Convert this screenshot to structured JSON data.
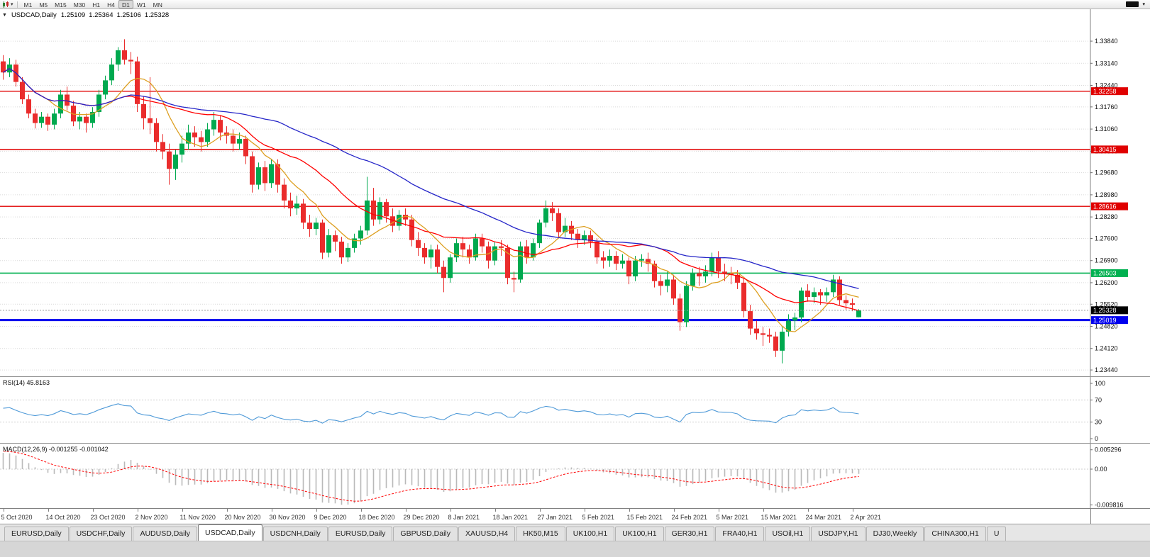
{
  "toolbar": {
    "timeframes": [
      "M1",
      "M5",
      "M15",
      "M30",
      "H1",
      "H4",
      "D1",
      "W1",
      "MN"
    ],
    "active_timeframe": "D1",
    "left_icon": "candlestick-chart-icon",
    "right_icon": "black-box-icon"
  },
  "chart_header": {
    "symbol_period": "USDCAD,Daily",
    "open": "1.25109",
    "high": "1.25364",
    "low": "1.25106",
    "close": "1.25328"
  },
  "chart_data": {
    "type": "candlestick",
    "symbol": "USDCAD",
    "period": "Daily",
    "grid": true,
    "up_color": "#00a94f",
    "down_color": "#ea2c2c",
    "price_view_range": [
      1.2324,
      1.3485
    ],
    "price_axis_labels": [
      "1.33840",
      "1.33140",
      "1.32440",
      "1.31760",
      "1.31060",
      "1.30360",
      "1.29680",
      "1.28980",
      "1.28280",
      "1.27600",
      "1.26900",
      "1.26200",
      "1.25520",
      "1.24820",
      "1.24120",
      "1.23440"
    ],
    "x_label_every": 7,
    "x_labels": [
      "5 Oct 2020",
      "14 Oct 2020",
      "23 Oct 2020",
      "2 Nov 2020",
      "11 Nov 2020",
      "20 Nov 2020",
      "30 Nov 2020",
      "9 Dec 2020",
      "18 Dec 2020",
      "29 Dec 2020",
      "8 Jan 2021",
      "18 Jan 2021",
      "27 Jan 2021",
      "5 Feb 2021",
      "15 Feb 2021",
      "24 Feb 2021",
      "5 Mar 2021",
      "15 Mar 2021",
      "24 Mar 2021",
      "2 Apr 2021"
    ],
    "candles": [
      [
        1.332,
        1.334,
        1.3262,
        1.3285
      ],
      [
        1.3285,
        1.333,
        1.327,
        1.331
      ],
      [
        1.331,
        1.3325,
        1.324,
        1.3255
      ],
      [
        1.3255,
        1.327,
        1.3185,
        1.32
      ],
      [
        1.32,
        1.3215,
        1.314,
        1.3155
      ],
      [
        1.3155,
        1.317,
        1.3108,
        1.3125
      ],
      [
        1.3125,
        1.316,
        1.311,
        1.3145
      ],
      [
        1.3145,
        1.3155,
        1.31,
        1.312
      ],
      [
        1.312,
        1.317,
        1.3105,
        1.3155
      ],
      [
        1.3155,
        1.323,
        1.314,
        1.3215
      ],
      [
        1.3215,
        1.324,
        1.3165,
        1.318
      ],
      [
        1.318,
        1.3195,
        1.3115,
        1.313
      ],
      [
        1.313,
        1.316,
        1.3105,
        1.3145
      ],
      [
        1.3145,
        1.3155,
        1.3095,
        1.3125
      ],
      [
        1.3125,
        1.3175,
        1.311,
        1.316
      ],
      [
        1.316,
        1.323,
        1.3145,
        1.3215
      ],
      [
        1.3215,
        1.3275,
        1.32,
        1.326
      ],
      [
        1.326,
        1.333,
        1.3245,
        1.331
      ],
      [
        1.331,
        1.3365,
        1.329,
        1.3355
      ],
      [
        1.3355,
        1.339,
        1.331,
        1.3325
      ],
      [
        1.3325,
        1.335,
        1.328,
        1.332
      ],
      [
        1.332,
        1.3335,
        1.316,
        1.3185
      ],
      [
        1.3185,
        1.321,
        1.3105,
        1.314
      ],
      [
        1.314,
        1.327,
        1.309,
        1.3125
      ],
      [
        1.3125,
        1.314,
        1.3035,
        1.3065
      ],
      [
        1.3065,
        1.309,
        1.301,
        1.3035
      ],
      [
        1.3035,
        1.306,
        1.293,
        1.298
      ],
      [
        1.298,
        1.304,
        1.2945,
        1.3025
      ],
      [
        1.3025,
        1.3085,
        1.3,
        1.306
      ],
      [
        1.306,
        1.312,
        1.304,
        1.3095
      ],
      [
        1.3095,
        1.3115,
        1.305,
        1.308
      ],
      [
        1.308,
        1.31,
        1.3035,
        1.3065
      ],
      [
        1.3065,
        1.3125,
        1.305,
        1.3105
      ],
      [
        1.3105,
        1.316,
        1.3085,
        1.3135
      ],
      [
        1.3135,
        1.315,
        1.307,
        1.3095
      ],
      [
        1.3095,
        1.3115,
        1.306,
        1.3085
      ],
      [
        1.3085,
        1.3105,
        1.3035,
        1.306
      ],
      [
        1.306,
        1.3095,
        1.304,
        1.3075
      ],
      [
        1.3075,
        1.3085,
        1.2995,
        1.302
      ],
      [
        1.302,
        1.3035,
        1.2905,
        1.293
      ],
      [
        1.293,
        1.3,
        1.2915,
        1.2985
      ],
      [
        1.2985,
        1.3005,
        1.291,
        1.2935
      ],
      [
        1.2935,
        1.301,
        1.292,
        1.2995
      ],
      [
        1.2995,
        1.301,
        1.2905,
        1.293
      ],
      [
        1.293,
        1.295,
        1.2855,
        1.288
      ],
      [
        1.288,
        1.2905,
        1.283,
        1.2855
      ],
      [
        1.2855,
        1.2895,
        1.2835,
        1.287
      ],
      [
        1.287,
        1.2885,
        1.279,
        1.281
      ],
      [
        1.281,
        1.2835,
        1.2765,
        1.279
      ],
      [
        1.279,
        1.2825,
        1.277,
        1.281
      ],
      [
        1.281,
        1.282,
        1.2695,
        1.2715
      ],
      [
        1.2715,
        1.279,
        1.27,
        1.277
      ],
      [
        1.277,
        1.2785,
        1.272,
        1.275
      ],
      [
        1.275,
        1.2765,
        1.268,
        1.27
      ],
      [
        1.27,
        1.2745,
        1.2685,
        1.273
      ],
      [
        1.273,
        1.2775,
        1.2715,
        1.276
      ],
      [
        1.276,
        1.28,
        1.274,
        1.2785
      ],
      [
        1.2785,
        1.2955,
        1.277,
        1.288
      ],
      [
        1.288,
        1.292,
        1.28,
        1.282
      ],
      [
        1.282,
        1.289,
        1.2805,
        1.2875
      ],
      [
        1.2875,
        1.2885,
        1.281,
        1.283
      ],
      [
        1.283,
        1.2855,
        1.278,
        1.28
      ],
      [
        1.28,
        1.285,
        1.2785,
        1.2835
      ],
      [
        1.2835,
        1.2855,
        1.28,
        1.282
      ],
      [
        1.282,
        1.2835,
        1.2735,
        1.2755
      ],
      [
        1.2755,
        1.278,
        1.2705,
        1.273
      ],
      [
        1.273,
        1.2745,
        1.268,
        1.27
      ],
      [
        1.27,
        1.274,
        1.2665,
        1.2725
      ],
      [
        1.2725,
        1.274,
        1.265,
        1.267
      ],
      [
        1.267,
        1.269,
        1.259,
        1.2635
      ],
      [
        1.2635,
        1.271,
        1.262,
        1.27
      ],
      [
        1.27,
        1.276,
        1.2685,
        1.2745
      ],
      [
        1.2745,
        1.2765,
        1.27,
        1.2725
      ],
      [
        1.2725,
        1.274,
        1.268,
        1.27
      ],
      [
        1.27,
        1.2775,
        1.269,
        1.276
      ],
      [
        1.276,
        1.2775,
        1.2715,
        1.2735
      ],
      [
        1.2735,
        1.275,
        1.2665,
        1.269
      ],
      [
        1.269,
        1.275,
        1.2675,
        1.2735
      ],
      [
        1.2735,
        1.2755,
        1.2705,
        1.273
      ],
      [
        1.273,
        1.274,
        1.2615,
        1.2635
      ],
      [
        1.2635,
        1.2655,
        1.259,
        1.263
      ],
      [
        1.263,
        1.275,
        1.262,
        1.2735
      ],
      [
        1.2735,
        1.2755,
        1.268,
        1.27
      ],
      [
        1.27,
        1.276,
        1.269,
        1.2745
      ],
      [
        1.2745,
        1.282,
        1.273,
        1.281
      ],
      [
        1.281,
        1.288,
        1.2795,
        1.2855
      ],
      [
        1.2855,
        1.2875,
        1.2815,
        1.284
      ],
      [
        1.284,
        1.2855,
        1.276,
        1.278
      ],
      [
        1.278,
        1.2825,
        1.2765,
        1.28
      ],
      [
        1.28,
        1.2815,
        1.2755,
        1.2775
      ],
      [
        1.2775,
        1.279,
        1.273,
        1.2755
      ],
      [
        1.2755,
        1.2785,
        1.274,
        1.277
      ],
      [
        1.277,
        1.2785,
        1.273,
        1.275
      ],
      [
        1.275,
        1.276,
        1.268,
        1.27
      ],
      [
        1.27,
        1.272,
        1.2665,
        1.269
      ],
      [
        1.269,
        1.2725,
        1.267,
        1.2705
      ],
      [
        1.2705,
        1.272,
        1.266,
        1.268
      ],
      [
        1.268,
        1.271,
        1.2665,
        1.269
      ],
      [
        1.269,
        1.27,
        1.2615,
        1.264
      ],
      [
        1.264,
        1.2705,
        1.2625,
        1.269
      ],
      [
        1.269,
        1.271,
        1.267,
        1.2695
      ],
      [
        1.2695,
        1.2715,
        1.2655,
        1.268
      ],
      [
        1.268,
        1.269,
        1.2605,
        1.2625
      ],
      [
        1.2625,
        1.2645,
        1.258,
        1.261
      ],
      [
        1.261,
        1.2655,
        1.259,
        1.263
      ],
      [
        1.263,
        1.2645,
        1.255,
        1.257
      ],
      [
        1.257,
        1.2585,
        1.2468,
        1.2495
      ],
      [
        1.2495,
        1.2625,
        1.248,
        1.261
      ],
      [
        1.261,
        1.2665,
        1.2595,
        1.265
      ],
      [
        1.265,
        1.267,
        1.261,
        1.264
      ],
      [
        1.264,
        1.2675,
        1.262,
        1.2655
      ],
      [
        1.2655,
        1.2715,
        1.264,
        1.27
      ],
      [
        1.27,
        1.272,
        1.2635,
        1.2655
      ],
      [
        1.2655,
        1.268,
        1.2625,
        1.265
      ],
      [
        1.265,
        1.267,
        1.2615,
        1.2645
      ],
      [
        1.2645,
        1.266,
        1.26,
        1.262
      ],
      [
        1.262,
        1.2635,
        1.251,
        1.253
      ],
      [
        1.253,
        1.255,
        1.2455,
        1.2475
      ],
      [
        1.2475,
        1.25,
        1.244,
        1.246
      ],
      [
        1.246,
        1.248,
        1.242,
        1.2455
      ],
      [
        1.2455,
        1.2475,
        1.243,
        1.245
      ],
      [
        1.245,
        1.2465,
        1.2385,
        1.2405
      ],
      [
        1.2405,
        1.248,
        1.2365,
        1.2465
      ],
      [
        1.2465,
        1.252,
        1.245,
        1.25
      ],
      [
        1.25,
        1.2525,
        1.247,
        1.251
      ],
      [
        1.251,
        1.2605,
        1.2495,
        1.2595
      ],
      [
        1.2595,
        1.2615,
        1.256,
        1.2575
      ],
      [
        1.2575,
        1.2605,
        1.2555,
        1.259
      ],
      [
        1.259,
        1.26,
        1.255,
        1.258
      ],
      [
        1.258,
        1.2605,
        1.256,
        1.259
      ],
      [
        1.259,
        1.2645,
        1.2575,
        1.263
      ],
      [
        1.263,
        1.264,
        1.255,
        1.2565
      ],
      [
        1.2565,
        1.258,
        1.2535,
        1.2555
      ],
      [
        1.2555,
        1.257,
        1.253,
        1.255
      ],
      [
        1.25109,
        1.25364,
        1.25106,
        1.25328
      ]
    ],
    "moving_averages": [
      {
        "name": "MA fast",
        "period": 8,
        "method": "sma",
        "color": "#dd9f20"
      },
      {
        "name": "MA medium",
        "period": 20,
        "method": "sma",
        "color": "#ff0000"
      },
      {
        "name": "MA slow",
        "period": 44,
        "method": "sma",
        "color": "#2525c8"
      }
    ],
    "horizontal_lines": [
      {
        "price": 1.32258,
        "label": "1.32258",
        "color": "#e00000",
        "width": 1.4
      },
      {
        "price": 1.30415,
        "label": "1.30415",
        "color": "#e00000",
        "width": 1.4
      },
      {
        "price": 1.28616,
        "label": "1.28616",
        "color": "#e00000",
        "width": 1.4
      },
      {
        "price": 1.26503,
        "label": "1.26503",
        "color": "#00b050",
        "width": 1.6
      },
      {
        "price": 1.25019,
        "label": "1.25019",
        "color": "#0000ee",
        "width": 3
      }
    ],
    "current_price": {
      "value": 1.25328,
      "label": "1.25328",
      "label_bg": "#000000"
    },
    "rsi": {
      "label": "RSI(14) 45.8163",
      "period": 14,
      "value": 45.8163,
      "axis_labels": [
        "100",
        "70",
        "30",
        "0"
      ],
      "color": "#4f9ad8"
    },
    "macd": {
      "label": "MACD(12,26,9) -0.001255 -0.001042",
      "fast": 12,
      "slow": 26,
      "signal": 9,
      "macd_value": -0.001255,
      "signal_value": -0.001042,
      "axis_labels": [
        "0.005296",
        "0.00",
        "-0.009816"
      ],
      "axis_values": [
        0.005296,
        0,
        -0.009816
      ],
      "histogram_color": "#b9b9b9",
      "signal_color": "#ff0000"
    }
  },
  "tabs": {
    "items": [
      "EURUSD,Daily",
      "USDCHF,Daily",
      "AUDUSD,Daily",
      "USDCAD,Daily",
      "USDCNH,Daily",
      "EURUSD,Daily",
      "GBPUSD,Daily",
      "XAUUSD,H4",
      "HK50,M15",
      "UK100,H1",
      "UK100,H1",
      "GER30,H1",
      "FRA40,H1",
      "USOil,H1",
      "USDJPY,H1",
      "DJ30,Weekly",
      "CHINA300,H1",
      "U"
    ],
    "active_index": 3
  }
}
